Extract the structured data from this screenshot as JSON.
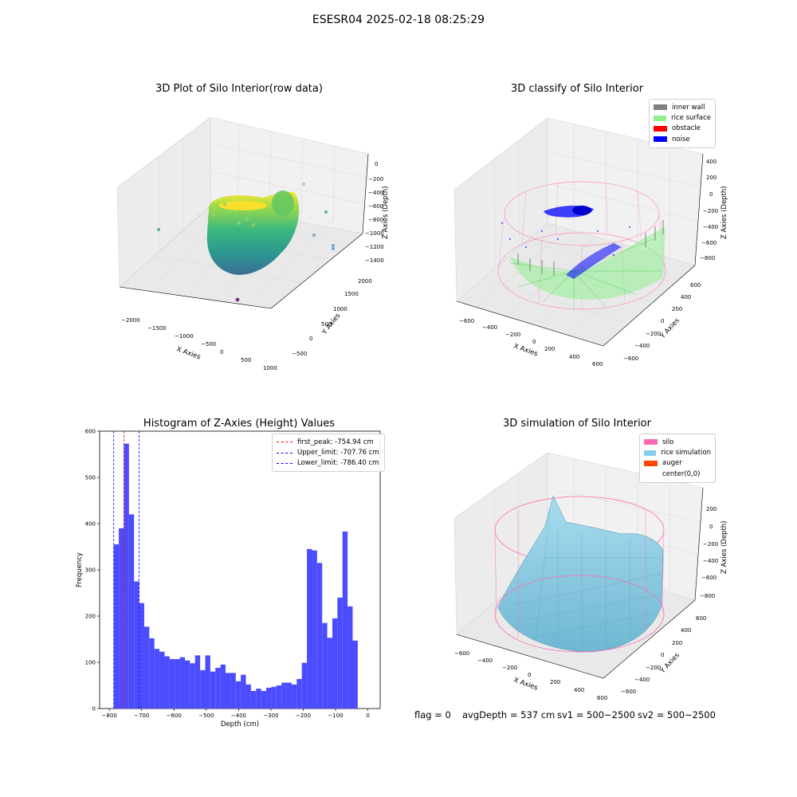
{
  "figure": {
    "suptitle": "ESESR04 2025-02-18 08:25:29",
    "status_line": {
      "flag": "flag = 0",
      "avg_depth": "avgDepth = 537 cm",
      "sv1": "sv1 = 500~2500",
      "sv2": "sv2 = 500~2500"
    }
  },
  "colors": {
    "inner_wall": "#808080",
    "rice_surface": "#90ee90",
    "obstacle": "#ff0000",
    "noise": "#0000ff",
    "histogram_bar": "#4c4cff",
    "silo": "#ff69b4",
    "rice_simulation": "#87ceeb",
    "auger": "#ff4500"
  },
  "chart_data": [
    {
      "type": "scatter",
      "subtype": "3d",
      "title": "3D Plot of Silo Interior(row data)",
      "xlabel": "X Axies",
      "ylabel": "Y Axies",
      "zlabel": "Z Axies (Depth)",
      "x_ticks": [
        "−2000",
        "−1500",
        "−1000",
        "−500",
        "0",
        "500",
        "1000"
      ],
      "y_ticks": [
        "−500",
        "0",
        "500",
        "1000",
        "1500",
        "2000"
      ],
      "z_ticks": [
        "0",
        "−200",
        "−400",
        "−600",
        "−800",
        "−1000",
        "−1200",
        "−1400"
      ],
      "colormap": "viridis"
    },
    {
      "type": "scatter",
      "subtype": "3d",
      "title": "3D classify of Silo Interior",
      "xlabel": "X Axies",
      "ylabel": "Y Axies",
      "zlabel": "Z Axies (Depth)",
      "x_ticks": [
        "−600",
        "−400",
        "−200",
        "0",
        "200",
        "400",
        "600"
      ],
      "y_ticks": [
        "−600",
        "−400",
        "−200",
        "0",
        "200",
        "400",
        "600"
      ],
      "z_ticks": [
        "400",
        "200",
        "0",
        "−200",
        "−400",
        "−600",
        "−800"
      ],
      "legend": [
        "inner wall",
        "rice surface",
        "obstacle",
        "noise"
      ]
    },
    {
      "type": "bar",
      "subtype": "histogram",
      "title": "Histogram of Z-Axies (Height) Values",
      "xlabel": "Depth (cm)",
      "ylabel": "Frequency",
      "xlim": [
        -830,
        38
      ],
      "ylim": [
        0,
        600
      ],
      "x_ticks": [
        -800,
        -700,
        -600,
        -500,
        -400,
        -300,
        -200,
        -100,
        0
      ],
      "y_ticks": [
        0,
        100,
        200,
        300,
        400,
        500,
        600
      ],
      "bin_start": -786.4,
      "bin_width": 15.73,
      "values": [
        355,
        390,
        573,
        420,
        275,
        228,
        177,
        152,
        129,
        123,
        113,
        107,
        107,
        111,
        104,
        98,
        115,
        83,
        115,
        80,
        88,
        95,
        77,
        77,
        59,
        73,
        52,
        38,
        43,
        38,
        45,
        47,
        50,
        56,
        56,
        52,
        64,
        99,
        345,
        342,
        315,
        185,
        153,
        195,
        240,
        383,
        221,
        147
      ],
      "vlines": [
        {
          "label": "first_peak: -754.94 cm",
          "x": -754.94,
          "color": "#ff0000"
        },
        {
          "label": "Upper_limit: -707.76 cm",
          "x": -707.76,
          "color": "#0000ff"
        },
        {
          "label": "Lower_limit: -786.40 cm",
          "x": -786.4,
          "color": "#0000ff"
        }
      ]
    },
    {
      "type": "surface",
      "subtype": "3d",
      "title": "3D simulation of Silo Interior",
      "xlabel": "X Axies",
      "ylabel": "Y Axies",
      "zlabel": "Z Axies (Depth)",
      "x_ticks": [
        "−600",
        "−400",
        "−200",
        "0",
        "200",
        "400",
        "600"
      ],
      "y_ticks": [
        "−600",
        "−400",
        "−200",
        "0",
        "200",
        "400",
        "600"
      ],
      "z_ticks": [
        "200",
        "0",
        "−200",
        "−400",
        "−600",
        "−800"
      ],
      "legend": [
        "silo",
        "rice simulation",
        "auger",
        "center(0,0)"
      ]
    }
  ]
}
